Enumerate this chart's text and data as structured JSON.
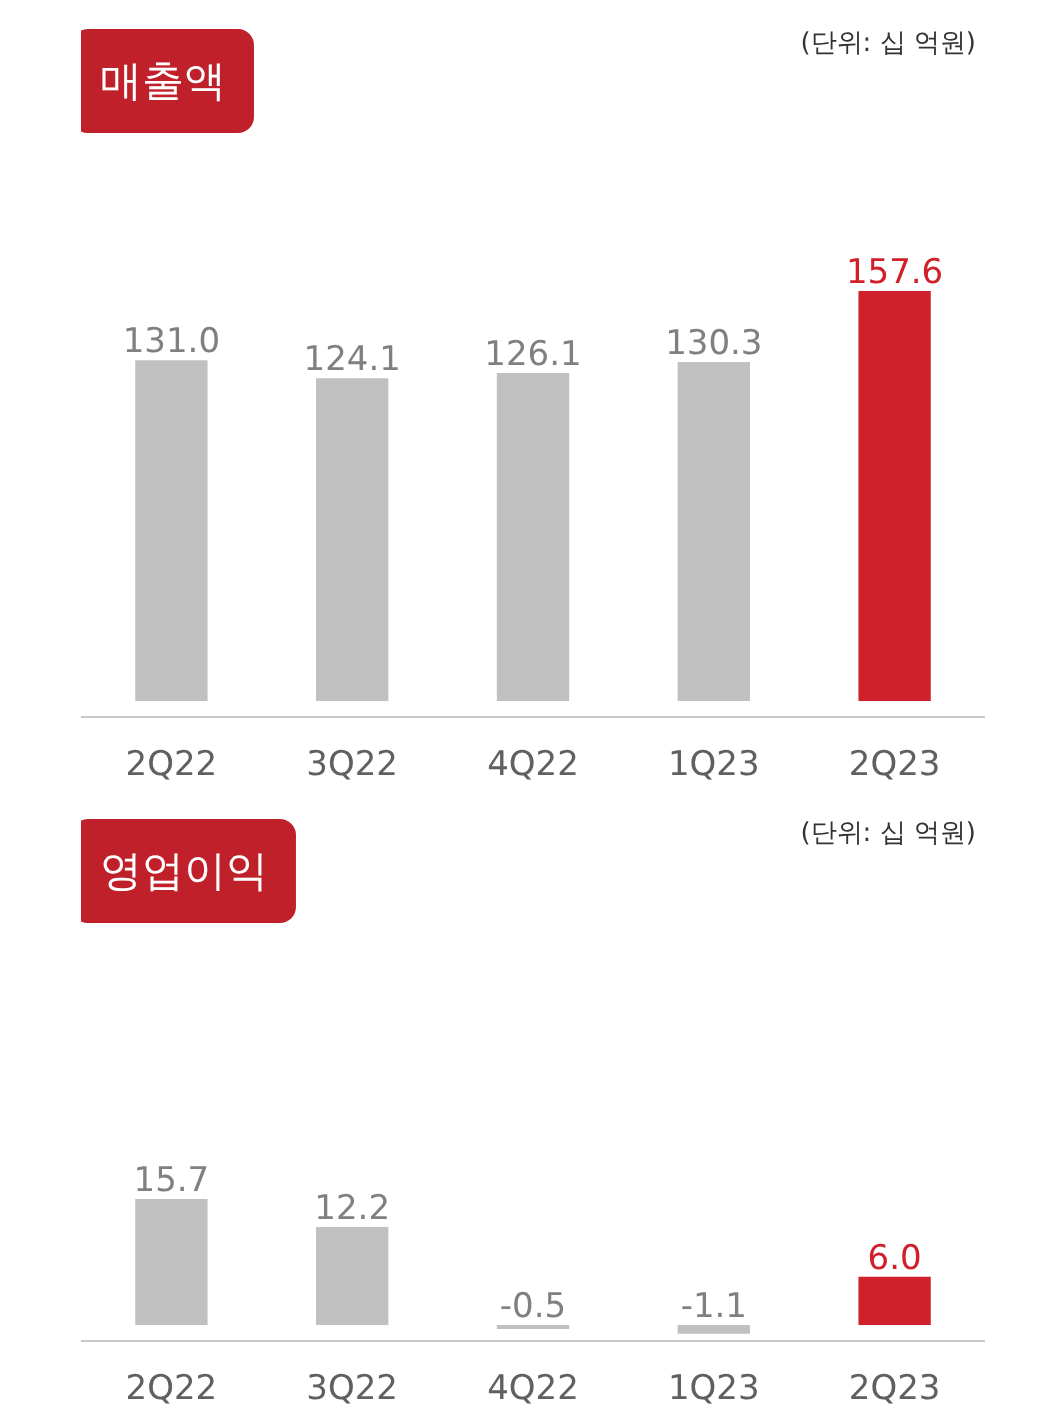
{
  "chart_data": [
    {
      "type": "bar",
      "title": "매출액",
      "annotations": [
        "(단위: 십 억원)"
      ],
      "categories": [
        "2Q22",
        "3Q22",
        "4Q22",
        "1Q23",
        "2Q23"
      ],
      "values": [
        131.0,
        124.1,
        126.1,
        130.3,
        157.6
      ],
      "colors": [
        "#c0c0c0",
        "#c0c0c0",
        "#c0c0c0",
        "#c0c0c0",
        "#d0202a"
      ],
      "value_labels": [
        "131.0",
        "124.1",
        "126.1",
        "130.3",
        "157.6"
      ],
      "grid": false
    },
    {
      "type": "bar",
      "title": "영업이익",
      "annotations": [
        "(단위: 십 억원)"
      ],
      "categories": [
        "2Q22",
        "3Q22",
        "4Q22",
        "1Q23",
        "2Q23"
      ],
      "values": [
        15.7,
        12.2,
        -0.5,
        -1.1,
        6.0
      ],
      "colors": [
        "#c0c0c0",
        "#c0c0c0",
        "#c0c0c0",
        "#c0c0c0",
        "#d0202a"
      ],
      "value_labels": [
        "15.7",
        "12.2",
        "-0.5",
        "-1.1",
        "6.0"
      ],
      "grid": false
    }
  ]
}
